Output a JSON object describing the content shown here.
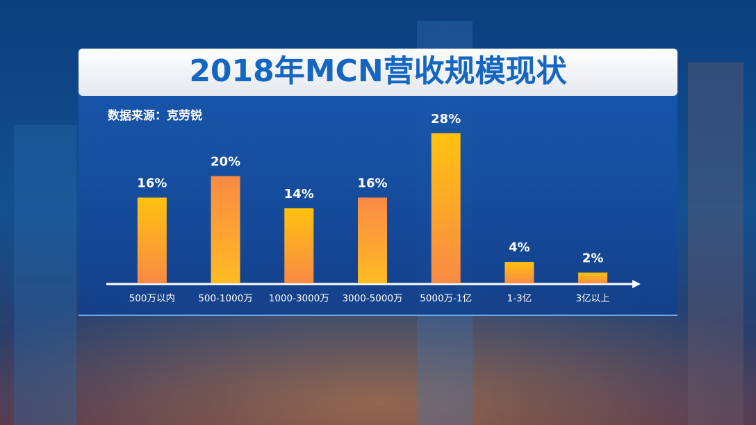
{
  "chart_data": {
    "type": "bar",
    "title": "2018年MCN营收规模现状",
    "subtitle": "数据来源：克劳锐",
    "categories": [
      "500万以内",
      "500-1000万",
      "1000-3000万",
      "3000-5000万",
      "5000万-1亿",
      "1-3亿",
      "3亿以上"
    ],
    "values": [
      16,
      20,
      14,
      16,
      28,
      4,
      2
    ],
    "value_labels": [
      "16%",
      "20%",
      "14%",
      "16%",
      "28%",
      "4%",
      "2%"
    ],
    "colors": [
      "#ffc20e",
      "#f98a45",
      "#ffc20e",
      "#f98a45",
      "#ffc20e",
      "#ffc20e",
      "#ffc20e"
    ]
  }
}
